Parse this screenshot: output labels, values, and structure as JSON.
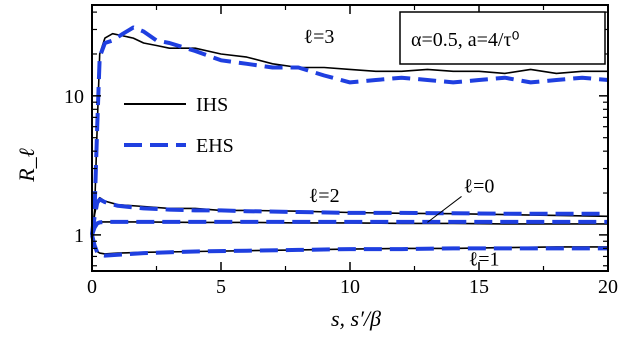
{
  "chart_data": {
    "type": "line",
    "xlabel": "s, s′/β",
    "ylabel": "R_ℓ",
    "xlim": [
      0,
      20
    ],
    "ylim": [
      0.55,
      45
    ],
    "yscale": "log",
    "x_ticks": [
      0,
      5,
      10,
      15,
      20
    ],
    "x_tick_labels": [
      "0",
      "5",
      "10",
      "15",
      "20"
    ],
    "y_ticks": [
      1,
      10
    ],
    "y_tick_labels": [
      "1",
      "10"
    ],
    "grid": false,
    "legend": {
      "placement": "upper-left",
      "entries": [
        {
          "label": "IHS",
          "style": "solid",
          "color": "#000000"
        },
        {
          "label": "EHS",
          "style": "dashed",
          "color": "#1f3fe0"
        }
      ]
    },
    "parameter_box": "α=0.5, a=4/τ⁰",
    "annotations": [
      {
        "text": "ℓ=3",
        "x": 8.2,
        "y": 24
      },
      {
        "text": "ℓ=2",
        "x": 8.4,
        "y": 1.72
      },
      {
        "text": "ℓ=0",
        "x": 14.4,
        "y": 2.02
      },
      {
        "text": "ℓ=1",
        "x": 14.6,
        "y": 0.6
      }
    ],
    "series": [
      {
        "name": "IHS",
        "curve": "ℓ=3",
        "style": "solid",
        "color": "#000000",
        "x": [
          0.0,
          0.1,
          0.2,
          0.3,
          0.5,
          0.8,
          1.2,
          1.6,
          2.0,
          2.5,
          3.0,
          4.0,
          5.0,
          6.0,
          7.0,
          8.0,
          9.0,
          10.0,
          11.0,
          12.0,
          13.0,
          14.0,
          15.0,
          16.0,
          17.0,
          18.0,
          19.0,
          20.0
        ],
        "y": [
          1.0,
          1.5,
          6.0,
          20.0,
          26.0,
          28.0,
          27.0,
          26.0,
          24.0,
          23.0,
          22.0,
          22.0,
          20.0,
          19.0,
          17.0,
          16.0,
          16.0,
          15.5,
          15.0,
          15.0,
          15.5,
          15.0,
          15.0,
          14.5,
          15.5,
          14.5,
          15.0,
          15.0
        ]
      },
      {
        "name": "EHS",
        "curve": "ℓ=3",
        "style": "dashed",
        "color": "#1f3fe0",
        "x": [
          0.0,
          0.1,
          0.2,
          0.3,
          0.5,
          0.8,
          1.2,
          1.6,
          2.0,
          2.5,
          3.0,
          4.0,
          5.0,
          6.0,
          7.0,
          8.0,
          9.0,
          10.0,
          11.0,
          12.0,
          13.0,
          14.0,
          15.0,
          16.0,
          17.0,
          18.0,
          19.0,
          20.0
        ],
        "y": [
          1.0,
          1.5,
          6.0,
          19.0,
          24.0,
          25.0,
          28.0,
          31.0,
          29.0,
          25.0,
          24.0,
          21.0,
          18.0,
          17.0,
          16.0,
          16.0,
          14.0,
          12.5,
          13.0,
          13.5,
          13.0,
          12.5,
          13.0,
          13.5,
          12.5,
          13.0,
          13.5,
          13.0
        ]
      },
      {
        "name": "IHS",
        "curve": "ℓ=2",
        "style": "solid",
        "color": "#000000",
        "x": [
          0.0,
          0.1,
          0.2,
          0.3,
          0.5,
          1.0,
          2.0,
          3.0,
          4.0,
          5.0,
          6.0,
          8.0,
          10.0,
          12.0,
          14.0,
          16.0,
          18.0,
          20.0
        ],
        "y": [
          1.0,
          1.4,
          1.75,
          1.85,
          1.75,
          1.65,
          1.6,
          1.55,
          1.55,
          1.5,
          1.5,
          1.48,
          1.45,
          1.43,
          1.42,
          1.4,
          1.38,
          1.36
        ]
      },
      {
        "name": "EHS",
        "curve": "ℓ=2",
        "style": "dashed",
        "color": "#1f3fe0",
        "x": [
          0.0,
          0.1,
          0.2,
          0.3,
          0.5,
          1.0,
          2.0,
          3.0,
          4.0,
          5.0,
          6.0,
          8.0,
          10.0,
          12.0,
          14.0,
          16.0,
          18.0,
          20.0
        ],
        "y": [
          1.0,
          1.35,
          1.7,
          1.8,
          1.72,
          1.62,
          1.55,
          1.52,
          1.5,
          1.5,
          1.48,
          1.46,
          1.44,
          1.44,
          1.43,
          1.42,
          1.42,
          1.42
        ]
      },
      {
        "name": "IHS",
        "curve": "ℓ=0",
        "style": "solid",
        "color": "#000000",
        "x": [
          0.0,
          0.1,
          0.2,
          0.3,
          0.5,
          1.0,
          2.0,
          4.0,
          6.0,
          8.0,
          10.0,
          12.0,
          14.0,
          16.0,
          18.0,
          20.0
        ],
        "y": [
          1.0,
          1.15,
          1.22,
          1.24,
          1.24,
          1.24,
          1.24,
          1.23,
          1.23,
          1.22,
          1.22,
          1.21,
          1.21,
          1.2,
          1.2,
          1.2
        ]
      },
      {
        "name": "EHS",
        "curve": "ℓ=0",
        "style": "dashed",
        "color": "#1f3fe0",
        "x": [
          0.0,
          0.1,
          0.2,
          0.3,
          0.5,
          1.0,
          2.0,
          4.0,
          6.0,
          8.0,
          10.0,
          12.0,
          14.0,
          16.0,
          18.0,
          20.0
        ],
        "y": [
          1.0,
          1.13,
          1.21,
          1.23,
          1.24,
          1.24,
          1.24,
          1.24,
          1.24,
          1.24,
          1.24,
          1.24,
          1.24,
          1.24,
          1.24,
          1.24
        ]
      },
      {
        "name": "IHS",
        "curve": "ℓ=1",
        "style": "solid",
        "color": "#000000",
        "x": [
          0.0,
          0.1,
          0.2,
          0.3,
          0.5,
          1.0,
          2.0,
          4.0,
          6.0,
          8.0,
          10.0,
          12.0,
          14.0,
          16.0,
          18.0,
          20.0
        ],
        "y": [
          1.0,
          0.82,
          0.76,
          0.74,
          0.73,
          0.74,
          0.75,
          0.76,
          0.77,
          0.78,
          0.79,
          0.8,
          0.8,
          0.81,
          0.82,
          0.82
        ]
      },
      {
        "name": "EHS",
        "curve": "ℓ=1",
        "style": "dashed",
        "color": "#1f3fe0",
        "x": [
          0.0,
          0.1,
          0.2,
          0.3,
          0.5,
          1.0,
          2.0,
          4.0,
          6.0,
          8.0,
          10.0,
          12.0,
          14.0,
          16.0,
          18.0,
          20.0
        ],
        "y": [
          1.0,
          0.84,
          0.75,
          0.72,
          0.71,
          0.72,
          0.74,
          0.76,
          0.77,
          0.78,
          0.79,
          0.79,
          0.8,
          0.8,
          0.8,
          0.8
        ]
      }
    ]
  }
}
